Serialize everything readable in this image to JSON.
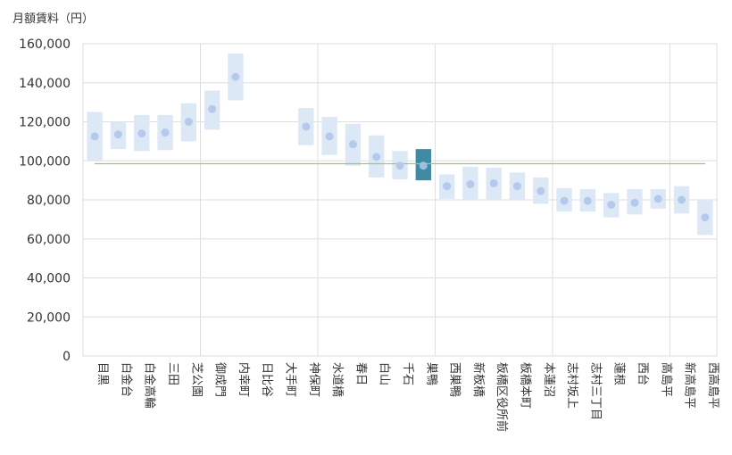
{
  "chart_data": {
    "type": "range-dot",
    "y_axis_title": "月額賃料（円）",
    "ylim": [
      0,
      160000
    ],
    "y_ticks": [
      0,
      20000,
      40000,
      60000,
      80000,
      100000,
      120000,
      140000,
      160000
    ],
    "y_tick_labels": [
      "0",
      "20,000",
      "40,000",
      "60,000",
      "80,000",
      "100,000",
      "120,000",
      "140,000",
      "160,000"
    ],
    "reference_line": 98500,
    "highlight_category": "巣鴨",
    "group_dividers_after": [
      "芝公園",
      "神保町",
      "巣鴨",
      "本蓮沼",
      "高島平"
    ],
    "categories": [
      "目黒",
      "白金台",
      "白金高輪",
      "三田",
      "芝公園",
      "御成門",
      "内幸町",
      "日比谷",
      "大手町",
      "神保町",
      "水道橋",
      "春日",
      "白山",
      "千石",
      "巣鴨",
      "西巣鴨",
      "新板橋",
      "板橋区役所前",
      "板橋本町",
      "本蓮沼",
      "志村坂上",
      "志村三丁目",
      "蓮根",
      "西台",
      "高島平",
      "新高島平",
      "西高島平"
    ],
    "series": [
      {
        "name": "low",
        "values": [
          100000,
          106000,
          105000,
          105500,
          110000,
          116000,
          131000,
          null,
          null,
          108000,
          103000,
          97500,
          91500,
          90500,
          90000,
          80500,
          80000,
          80000,
          80000,
          78000,
          74000,
          74000,
          71000,
          72500,
          75500,
          73000,
          62000
        ]
      },
      {
        "name": "high",
        "values": [
          125000,
          120000,
          123500,
          123500,
          129500,
          136000,
          155000,
          null,
          null,
          127000,
          122500,
          119000,
          113000,
          105000,
          106000,
          93000,
          97000,
          96500,
          94000,
          91500,
          86000,
          85500,
          83500,
          85500,
          85500,
          87000,
          80000
        ]
      },
      {
        "name": "average",
        "values": [
          112500,
          113500,
          114000,
          114500,
          120000,
          126500,
          143000,
          null,
          null,
          117500,
          112500,
          108500,
          102000,
          97500,
          97500,
          87000,
          88000,
          88500,
          87000,
          84500,
          79500,
          79500,
          77500,
          78500,
          80500,
          80000,
          71000
        ]
      }
    ],
    "colors": {
      "range": "#dce8f5",
      "dot": "#b4c9ec",
      "highlight_range": "#3f8aa4",
      "highlight_dot": "#a3bde0",
      "reference": "#9cc96a",
      "grid": "#dedede"
    }
  }
}
